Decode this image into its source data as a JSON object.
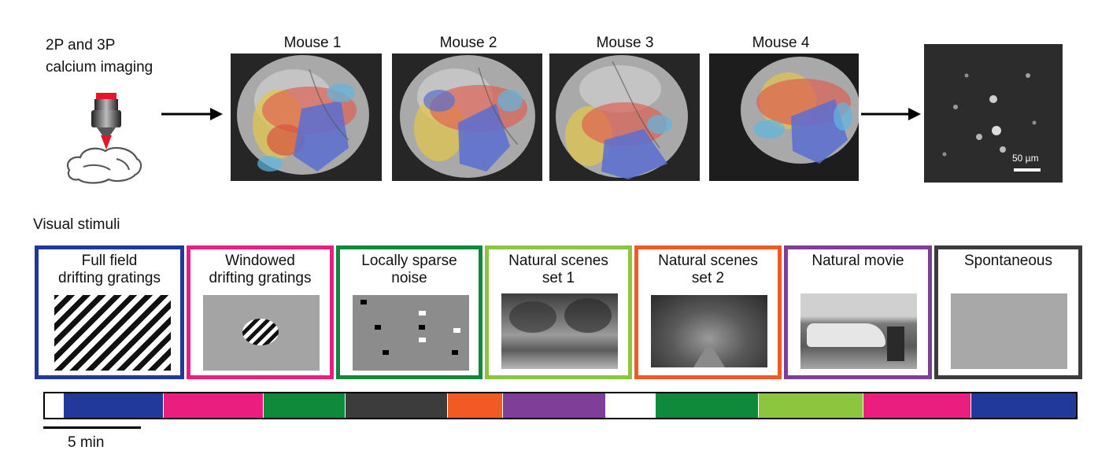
{
  "imaging": {
    "title_line1": "2P and 3P",
    "title_line2": "calcium imaging",
    "icons": [
      "microscope-icon",
      "mouse-brain-icon",
      "arrow-right-icon"
    ]
  },
  "mice": [
    {
      "label": "Mouse 1"
    },
    {
      "label": "Mouse 2"
    },
    {
      "label": "Mouse 3"
    },
    {
      "label": "Mouse 4"
    }
  ],
  "field_of_view": {
    "scale_bar_label": "50 µm"
  },
  "stimuli_section": {
    "title": "Visual stimuli",
    "stimuli": [
      {
        "line1": "Full field",
        "line2": "drifting gratings",
        "color": "#21399a"
      },
      {
        "line1": "Windowed",
        "line2": "drifting gratings",
        "color": "#ea1e7e"
      },
      {
        "line1": "Locally sparse",
        "line2": "noise",
        "color": "#0f8a3b"
      },
      {
        "line1": "Natural scenes",
        "line2": "set 1",
        "color": "#8cc63f"
      },
      {
        "line1": "Natural scenes",
        "line2": "set 2",
        "color": "#f15a24"
      },
      {
        "line1": "Natural movie",
        "line2": "",
        "color": "#7f3f98"
      },
      {
        "line1": "Spontaneous",
        "line2": "",
        "color": "#3c3c3c"
      }
    ]
  },
  "timeline": {
    "scale_label": "5 min",
    "scale_minutes": 5,
    "segments": [
      {
        "color": "#ffffff",
        "weight": 0.35
      },
      {
        "color": "#21399a",
        "weight": 1.9
      },
      {
        "color": "#ea1e7e",
        "weight": 1.9
      },
      {
        "color": "#0f8a3b",
        "weight": 1.55
      },
      {
        "color": "#3c3c3c",
        "weight": 1.95
      },
      {
        "color": "#f15a24",
        "weight": 1.05
      },
      {
        "color": "#7f3f98",
        "weight": 1.95
      },
      {
        "color": "#ffffff",
        "weight": 0.95
      },
      {
        "color": "#0f8a3b",
        "weight": 1.95
      },
      {
        "color": "#8cc63f",
        "weight": 2.0
      },
      {
        "color": "#ea1e7e",
        "weight": 2.05
      },
      {
        "color": "#21399a",
        "weight": 2.0
      }
    ]
  }
}
